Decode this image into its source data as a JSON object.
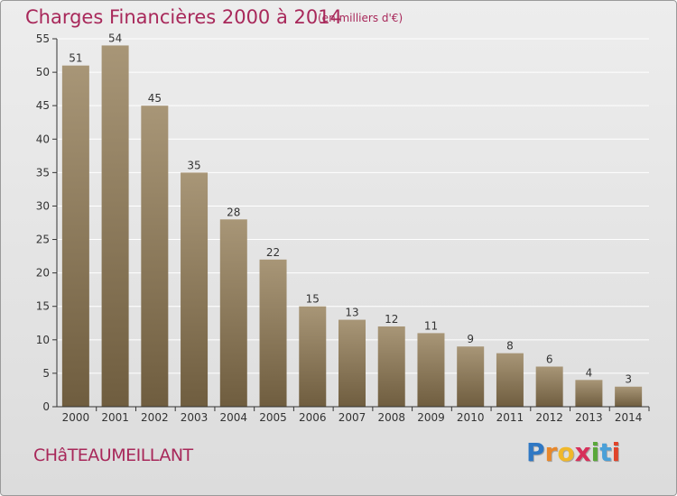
{
  "title": "Charges Financières 2000 à 2014",
  "subtitle": "(en milliers d'€)",
  "commune": "CHâTEAUMEILLANT",
  "logo": {
    "letters": [
      "P",
      "r",
      "o",
      "x",
      "i",
      "t",
      "i"
    ],
    "colors": [
      "#2f78c4",
      "#e8872a",
      "#f0b82a",
      "#d7305a",
      "#5aa83a",
      "#4aa0d8",
      "#e0442a"
    ]
  },
  "colors": {
    "title": "#a8285a",
    "bar_light": "#a89677",
    "bar_dark": "#6f5d3f",
    "axis": "#333333",
    "grid": "#ffffff"
  },
  "chart_data": {
    "type": "bar",
    "title": "Charges Financières 2000 à 2014",
    "subtitle": "(en milliers d'€)",
    "xlabel": "",
    "ylabel": "",
    "categories": [
      "2000",
      "2001",
      "2002",
      "2003",
      "2004",
      "2005",
      "2006",
      "2007",
      "2008",
      "2009",
      "2010",
      "2011",
      "2012",
      "2013",
      "2014"
    ],
    "values": [
      51,
      54,
      45,
      35,
      28,
      22,
      15,
      13,
      12,
      11,
      9,
      8,
      6,
      4,
      3
    ],
    "ylim": [
      0,
      55
    ],
    "yticks": [
      0,
      5,
      10,
      15,
      20,
      25,
      30,
      35,
      40,
      45,
      50,
      55
    ],
    "grid": true,
    "legend": "none"
  }
}
